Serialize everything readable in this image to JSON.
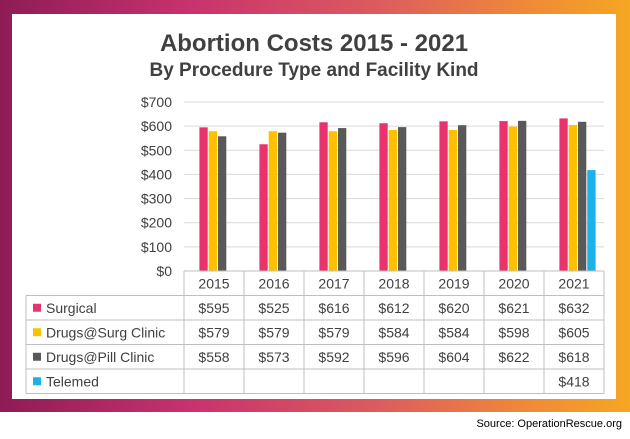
{
  "chart_data": {
    "type": "bar",
    "title": "Abortion Costs 2015 - 2021",
    "subtitle": "By Procedure Type and Facility Kind",
    "categories": [
      "2015",
      "2016",
      "2017",
      "2018",
      "2019",
      "2020",
      "2021"
    ],
    "ylim": [
      0,
      700
    ],
    "yticks": [
      "$0",
      "$100",
      "$200",
      "$300",
      "$400",
      "$500",
      "$600",
      "$700"
    ],
    "grid": true,
    "legend": "data-table-left",
    "series": [
      {
        "name": "Surgical",
        "color": "#e8336e",
        "values": [
          595,
          525,
          616,
          612,
          620,
          621,
          632
        ],
        "labels": [
          "$595",
          "$525",
          "$616",
          "$612",
          "$620",
          "$621",
          "$632"
        ]
      },
      {
        "name": "Drugs@Surg Clinic",
        "color": "#ffc000",
        "values": [
          579,
          579,
          579,
          584,
          584,
          598,
          605
        ],
        "labels": [
          "$579",
          "$579",
          "$579",
          "$584",
          "$584",
          "$598",
          "$605"
        ]
      },
      {
        "name": "Drugs@Pill Clinic",
        "color": "#595959",
        "values": [
          558,
          573,
          592,
          596,
          604,
          622,
          618
        ],
        "labels": [
          "$558",
          "$573",
          "$592",
          "$596",
          "$604",
          "$622",
          "$618"
        ]
      },
      {
        "name": "Telemed",
        "color": "#1ab2e8",
        "values": [
          null,
          null,
          null,
          null,
          null,
          null,
          418
        ],
        "labels": [
          "",
          "",
          "",
          "",
          "",
          "",
          "$418"
        ]
      }
    ]
  },
  "source": "Source: OperationRescue.org"
}
